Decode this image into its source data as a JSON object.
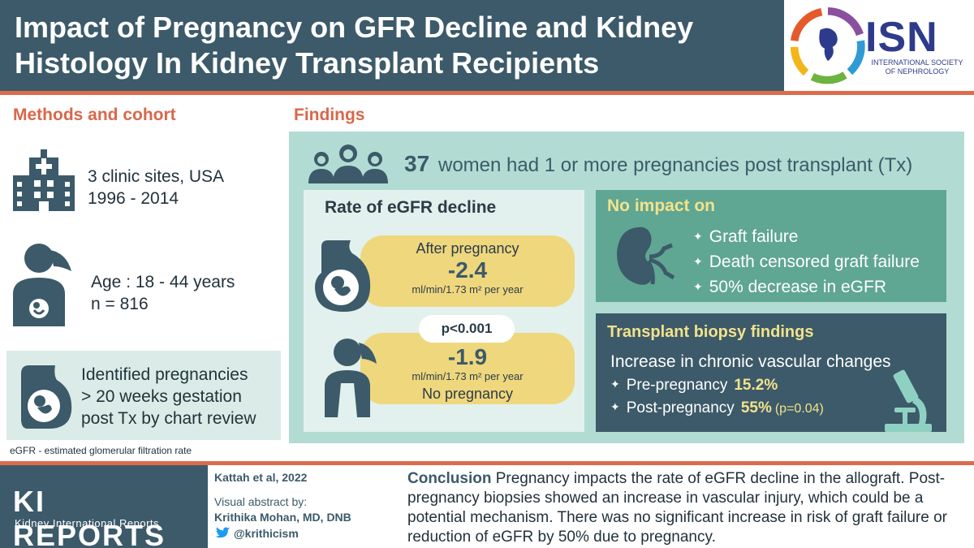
{
  "header": {
    "title": "Impact of Pregnancy on GFR Decline and Kidney Histology In Kidney Transplant Recipients",
    "logo_name": "ISN",
    "logo_subtitle": "INTERNATIONAL SOCIETY OF NEPHROLOGY"
  },
  "methods": {
    "heading": "Methods and cohort",
    "sites_line1": "3 clinic sites, USA",
    "sites_line2": "1996 - 2014",
    "age_line1": "Age : 18 - 44 years",
    "age_line2": "n = 816",
    "criteria_line1": "Identified pregnancies",
    "criteria_line2": "> 20 weeks gestation",
    "criteria_line3": "post Tx by chart review",
    "abbreviation": "eGFR - estimated glomerular filtration rate"
  },
  "findings": {
    "heading": "Findings",
    "headline_number": "37",
    "headline_text": "women had 1 or more pregnancies post transplant (Tx)",
    "egfr": {
      "title": "Rate of eGFR decline",
      "after_label": "After pregnancy",
      "after_value": "-2.4",
      "unit": "ml/min/1.73 m² per year",
      "p_value": "p<0.001",
      "none_value": "-1.9",
      "none_label": "No pregnancy"
    },
    "no_impact": {
      "title": "No impact on",
      "items": [
        "Graft failure",
        "Death censored graft failure",
        "50% decrease in eGFR"
      ]
    },
    "biopsy": {
      "title": "Transplant biopsy findings",
      "subtitle": "Increase in chronic vascular changes",
      "pre_label": "Pre-pregnancy",
      "pre_value": "15.2%",
      "post_label": "Post-pregnancy",
      "post_value": "55%",
      "post_p": "(p=0.04)"
    }
  },
  "footer": {
    "journal_title": "KI REPORTS",
    "journal_subtitle": "Kidney International Reports",
    "citation": "Kattah et al, 2022",
    "abstract_by": "Visual abstract by:",
    "author": "Krithika Mohan, MD, DNB",
    "twitter": "@krithicism",
    "conclusion_head": "Conclusion",
    "conclusion_text": "Pregnancy impacts the rate of eGFR decline in the allograft. Post-pregnancy biopsies showed an increase in vascular injury, which could be a potential mechanism. There was no significant increase in risk of graft failure or reduction of eGFR by 50% due to pregnancy."
  },
  "colors": {
    "navy": "#3c5a69",
    "accent": "#dd6b4c",
    "mint": "#b2dcd3",
    "yellow": "#efd77e",
    "green_panel": "#5fa693"
  }
}
